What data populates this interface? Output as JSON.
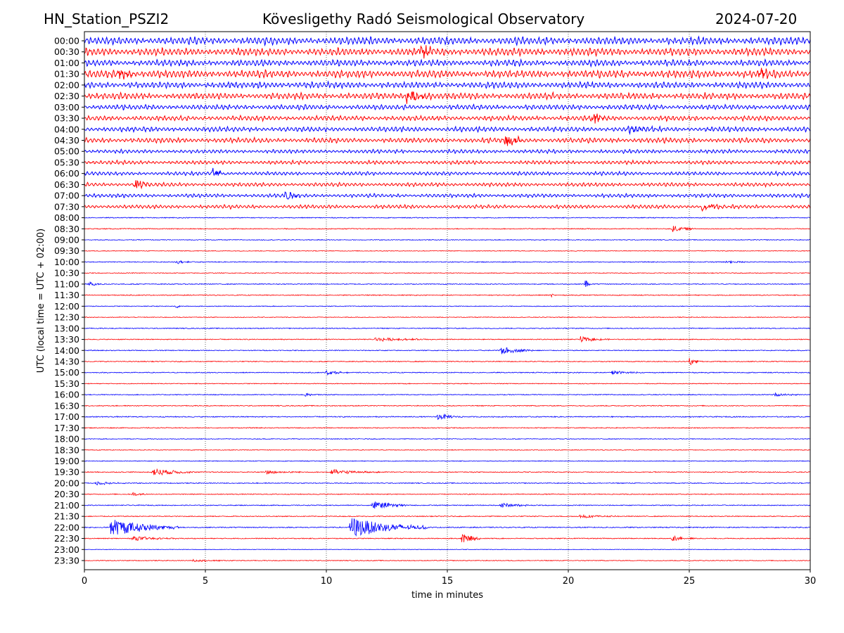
{
  "chart_data": {
    "type": "line",
    "title_left": "HN_Station_PSZI2",
    "title_center": "Kövesligethy Radó Seismological Observatory",
    "title_right": "2024-07-20",
    "xlabel": "time in minutes",
    "ylabel": "UTC (local time = UTC + 02:00)",
    "xlim": [
      0,
      30
    ],
    "xticks": [
      0,
      5,
      10,
      15,
      20,
      25,
      30
    ],
    "grid": "vertical dotted",
    "colors": [
      "#0000ff",
      "#ff0000"
    ],
    "rows": [
      "00:00",
      "00:30",
      "01:00",
      "01:30",
      "02:00",
      "02:30",
      "03:00",
      "03:30",
      "04:00",
      "04:30",
      "05:00",
      "05:30",
      "06:00",
      "06:30",
      "07:00",
      "07:30",
      "08:00",
      "08:30",
      "09:00",
      "09:30",
      "10:00",
      "10:30",
      "11:00",
      "11:30",
      "12:00",
      "12:30",
      "13:00",
      "13:30",
      "14:00",
      "14:30",
      "15:00",
      "15:30",
      "16:00",
      "16:30",
      "17:00",
      "17:30",
      "18:00",
      "18:30",
      "19:00",
      "19:30",
      "20:00",
      "20:30",
      "21:00",
      "21:30",
      "22:00",
      "22:30",
      "23:00",
      "23:30"
    ],
    "noise_level": [
      6,
      6,
      5,
      6,
      5,
      5,
      4,
      4,
      4,
      4,
      3,
      3,
      3,
      3,
      3,
      3,
      0.6,
      0.6,
      0.5,
      0.5,
      0.6,
      0.5,
      0.6,
      0.6,
      0.5,
      0.5,
      0.6,
      0.6,
      0.6,
      0.6,
      0.6,
      0.5,
      0.6,
      0.6,
      0.7,
      0.6,
      0.5,
      0.5,
      0.5,
      0.6,
      0.6,
      0.6,
      0.6,
      0.6,
      0.7,
      0.6,
      0.4,
      0.5
    ],
    "events": [
      [
        1,
        13.9,
        10,
        0.4
      ],
      [
        3,
        1.4,
        8,
        0.4
      ],
      [
        3,
        27.9,
        8,
        0.4
      ],
      [
        5,
        13.3,
        9,
        0.6
      ],
      [
        7,
        21,
        9,
        0.3
      ],
      [
        8,
        22.5,
        4,
        0.6
      ],
      [
        9,
        17.4,
        9,
        0.4
      ],
      [
        12,
        5.3,
        8,
        0.3
      ],
      [
        13,
        2.1,
        8,
        0.3
      ],
      [
        14,
        8.3,
        7,
        0.3
      ],
      [
        15,
        25.5,
        5,
        0.6
      ],
      [
        17,
        24.3,
        5,
        0.5
      ],
      [
        20,
        3.8,
        3,
        0.3
      ],
      [
        20,
        26.5,
        3,
        0.5
      ],
      [
        22,
        20.7,
        8,
        0.1
      ],
      [
        22,
        0.2,
        3,
        0.4
      ],
      [
        23,
        19.3,
        3,
        0.1
      ],
      [
        24,
        3.8,
        4,
        0.1
      ],
      [
        27,
        12,
        3,
        1.2
      ],
      [
        27,
        20.5,
        4,
        0.6
      ],
      [
        28,
        17.2,
        6,
        0.7
      ],
      [
        29,
        25,
        6,
        0.3
      ],
      [
        30,
        10,
        3,
        0.5
      ],
      [
        30,
        21.8,
        3,
        0.6
      ],
      [
        32,
        9.1,
        3,
        0.3
      ],
      [
        32,
        28.5,
        3,
        0.5
      ],
      [
        34,
        14.6,
        5,
        0.5
      ],
      [
        39,
        2.8,
        6,
        0.9
      ],
      [
        39,
        10.2,
        4,
        1
      ],
      [
        39,
        7.5,
        3,
        0.8
      ],
      [
        40,
        0.5,
        3,
        0.6
      ],
      [
        41,
        2,
        3,
        0.3
      ],
      [
        42,
        11.9,
        7,
        0.7
      ],
      [
        42,
        17.2,
        4,
        0.6
      ],
      [
        43,
        20.5,
        3,
        0.8
      ],
      [
        44,
        1.1,
        13,
        1.4
      ],
      [
        44,
        11,
        15,
        1.6
      ],
      [
        45,
        15.6,
        8,
        0.4
      ],
      [
        45,
        24.3,
        4,
        0.5
      ],
      [
        45,
        2,
        3,
        1
      ],
      [
        47,
        4.5,
        2,
        0.8
      ]
    ]
  }
}
